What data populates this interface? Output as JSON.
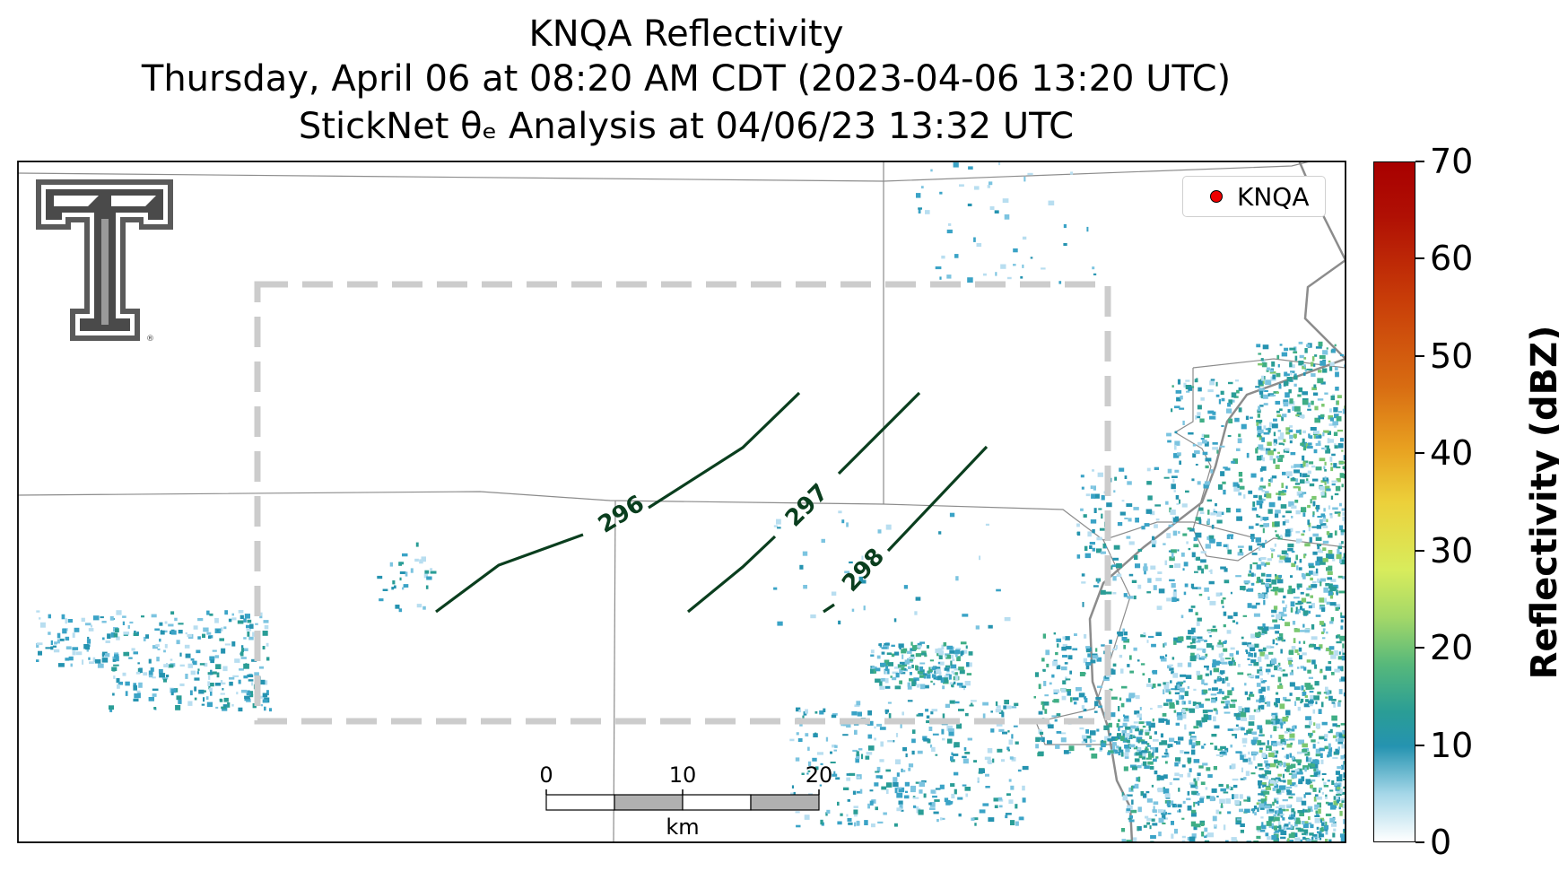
{
  "title": {
    "line1": "KNQA Reflectivity",
    "line2": "Thursday, April 06 at 08:20 AM CDT (2023-04-06 13:20 UTC)",
    "line3": "StickNet θₑ Analysis at 04/06/23 13:32 UTC"
  },
  "legend": {
    "label": "KNQA",
    "marker_color": "#ee0000"
  },
  "colorbar": {
    "label": "Reflectivity (dBZ)",
    "ticks": [
      "0",
      "10",
      "20",
      "30",
      "40",
      "50",
      "60",
      "70"
    ],
    "range": [
      0,
      70
    ]
  },
  "contours": [
    {
      "label": "296",
      "color": "#0a3e1e"
    },
    {
      "label": "297",
      "color": "#0a3e1e"
    },
    {
      "label": "298",
      "color": "#0a3e1e"
    }
  ],
  "scale_bar": {
    "ticks": [
      "0",
      "10",
      "20"
    ],
    "unit": "km"
  },
  "logo": {
    "name": "Texas Tech Double T logo"
  },
  "colors": {
    "reflectivity_blue": "#2593b0",
    "reflectivity_teal": "#2a9d96",
    "analysis_box": "#cccccc",
    "boundary_lines": "#8c8c8c"
  }
}
